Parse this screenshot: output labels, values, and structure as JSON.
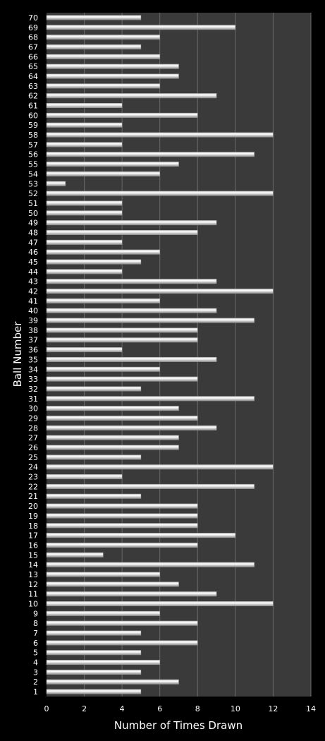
{
  "chart_data": {
    "type": "bar",
    "orientation": "horizontal",
    "title": "",
    "xlabel": "Number of Times Drawn",
    "ylabel": "Ball Number",
    "xlim": [
      0,
      14
    ],
    "x_ticks": [
      "0",
      "2",
      "4",
      "6",
      "8",
      "10",
      "12",
      "14"
    ],
    "grid": true,
    "legend": "none",
    "categories": [
      "1",
      "2",
      "3",
      "4",
      "5",
      "6",
      "7",
      "8",
      "9",
      "10",
      "11",
      "12",
      "13",
      "14",
      "15",
      "16",
      "17",
      "18",
      "19",
      "20",
      "21",
      "22",
      "23",
      "24",
      "25",
      "26",
      "27",
      "28",
      "29",
      "30",
      "31",
      "32",
      "33",
      "34",
      "35",
      "36",
      "37",
      "38",
      "39",
      "40",
      "41",
      "42",
      "43",
      "44",
      "45",
      "46",
      "47",
      "48",
      "49",
      "50",
      "51",
      "52",
      "53",
      "54",
      "55",
      "56",
      "57",
      "58",
      "59",
      "60",
      "61",
      "62",
      "63",
      "64",
      "65",
      "66",
      "67",
      "68",
      "69",
      "70"
    ],
    "values": [
      5,
      7,
      5,
      6,
      5,
      8,
      5,
      8,
      6,
      12,
      9,
      7,
      6,
      11,
      3,
      8,
      10,
      8,
      8,
      8,
      5,
      11,
      4,
      12,
      5,
      7,
      7,
      9,
      8,
      7,
      11,
      5,
      8,
      6,
      9,
      4,
      8,
      8,
      11,
      9,
      6,
      12,
      9,
      4,
      5,
      6,
      4,
      8,
      9,
      4,
      4,
      12,
      1,
      6,
      7,
      11,
      4,
      12,
      4,
      8,
      4,
      9,
      6,
      7,
      7,
      6,
      5,
      6,
      10,
      5
    ],
    "colors": {
      "background": "#000000",
      "plot_area": "#3a3a3a",
      "gridline": "#6a6a6a",
      "bar_light": "#ffffff",
      "bar_dark": "#8a8a8a",
      "text": "#ffffff"
    }
  }
}
